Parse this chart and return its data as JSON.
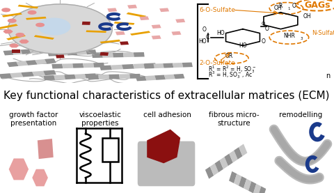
{
  "title": "Key functional characteristics of extracellular matrices (ECM)",
  "title_fontsize": 11,
  "panels": [
    {
      "label": "growth factor\npresentation",
      "bg_color": "#F5A020",
      "icon": "growth_factor"
    },
    {
      "label": "viscoelastic\nproperties",
      "bg_color": "#F5A020",
      "icon": "viscoelastic"
    },
    {
      "label": "cell adhesion",
      "bg_color": "#F5C87A",
      "icon": "cell_adhesion"
    },
    {
      "label": "fibrous micro-\nstructure",
      "bg_color": "#C8C8C8",
      "icon": "fibrous"
    },
    {
      "label": "remodelling",
      "bg_color": "#A8A8A8",
      "icon": "remodelling"
    }
  ],
  "fig_bg": "#FFFFFF"
}
